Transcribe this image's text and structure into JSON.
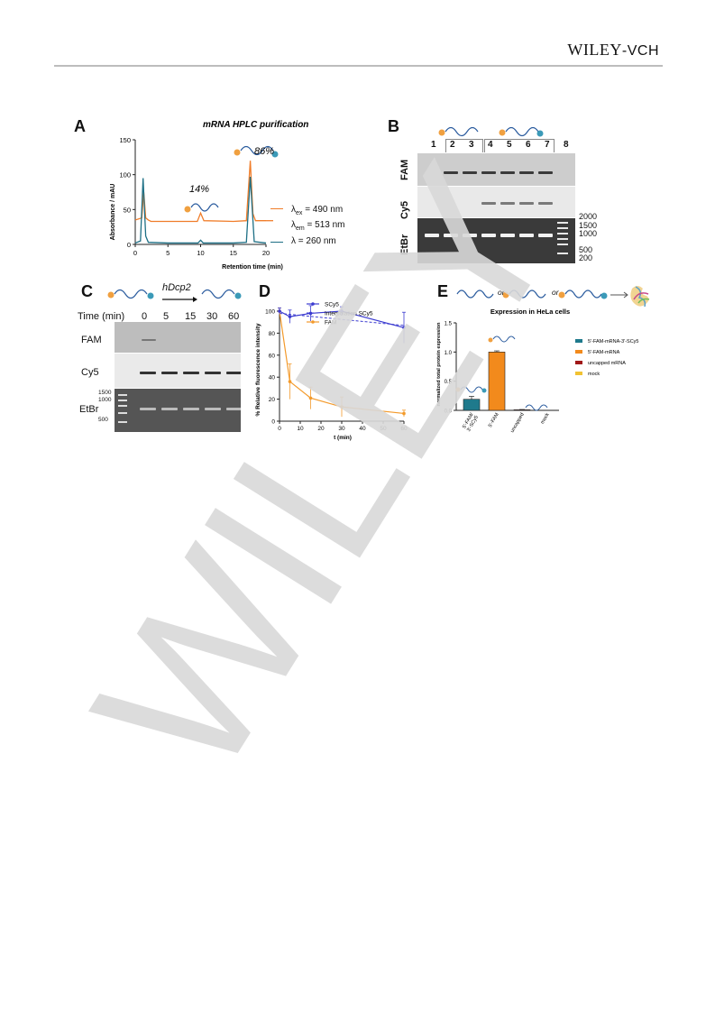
{
  "header": {
    "brand_main": "WILEY",
    "brand_sub": "-VCH"
  },
  "watermark": "WILEY",
  "panels": {
    "a": {
      "letter": "A",
      "title": "mRNA HPLC purification",
      "ylabel": "Absorbance / mAU",
      "xlabel": "Retention time (min)",
      "yticks": [
        "150",
        "100",
        "50",
        "0"
      ],
      "xticks": [
        "0",
        "5",
        "10",
        "15",
        "20"
      ],
      "peak_small_pct": "14%",
      "peak_large_pct": "86%",
      "legend_ex_value": "= 490 nm",
      "legend_em_value": "= 513 nm",
      "legend_abs_value": "= 260 nm",
      "lambda": "λ",
      "sub_ex": "ex",
      "sub_em": "em",
      "orange_color": "#f07d2a",
      "teal_color": "#1d6f85"
    },
    "b": {
      "letter": "B",
      "lanes": [
        "1",
        "2",
        "3",
        "4",
        "5",
        "6",
        "7",
        "8"
      ],
      "row_labels": [
        "FAM",
        "Cy5",
        "EtBr"
      ],
      "marker_labels": [
        "2000",
        "1500",
        "1000",
        "500",
        "200"
      ]
    },
    "c": {
      "letter": "C",
      "enzyme": "hDcp2",
      "time_label": "Time (min)",
      "times": [
        "0",
        "5",
        "15",
        "30",
        "60"
      ],
      "row_labels": [
        "FAM",
        "Cy5",
        "EtBr"
      ],
      "marker_labels": [
        "1500",
        "1000",
        "500"
      ]
    },
    "d": {
      "letter": "D",
      "ylabel": "% Relative fluorescence intensity",
      "xlabel": "t (min)",
      "yticks": [
        "100",
        "80",
        "60",
        "40",
        "20",
        "0"
      ],
      "xticks": [
        "0",
        "10",
        "20",
        "30",
        "40",
        "50",
        "60"
      ],
      "legend": [
        "SCy5",
        "Interpolation SCy5",
        "FAM"
      ],
      "scy5_color": "#3b3bd0",
      "fam_color": "#f39a2b"
    },
    "e": {
      "letter": "E",
      "or_word": "or",
      "title": "Expression in HeLa cells",
      "ylabel": "normalized total protein expression",
      "yticks": [
        "1.5",
        "1.0",
        "0.5",
        "0.0"
      ],
      "bar_labels": [
        "5'-FAM/ 3'-SCy5",
        "5'-FAM",
        "uncapped",
        "mock"
      ],
      "legend": [
        "5'-FAM-mRNA-3'-SCy5",
        "5'-FAM-mRNA",
        "uncapped mRNA",
        "mock"
      ],
      "legend_colors": [
        "#1f7a8c",
        "#f28a1c",
        "#a01818",
        "#f1c232"
      ]
    }
  },
  "chart_data": [
    {
      "type": "line",
      "title": "mRNA HPLC purification",
      "xlabel": "Retention time (min)",
      "ylabel": "Absorbance / mAU",
      "xlim": [
        0,
        20
      ],
      "ylim": [
        0,
        150
      ],
      "annotations": [
        "14%",
        "86%"
      ],
      "series": [
        {
          "name": "λex = 490 nm, λem = 513 nm",
          "x": [
            0,
            1,
            1.3,
            1.6,
            2,
            2.4,
            5,
            9.5,
            10,
            10.5,
            15,
            17,
            17.6,
            18,
            18.4,
            20
          ],
          "y": [
            35,
            38,
            75,
            38,
            35,
            33,
            33,
            33,
            45,
            34,
            33,
            34,
            120,
            44,
            34,
            34
          ]
        },
        {
          "name": "λ = 260 nm",
          "x": [
            0,
            0.8,
            1.2,
            1.6,
            2,
            5,
            9.6,
            10,
            10.4,
            15,
            17,
            17.6,
            18.2,
            20
          ],
          "y": [
            2,
            5,
            95,
            12,
            3,
            2,
            2,
            6,
            2,
            2,
            3,
            97,
            4,
            2
          ]
        }
      ]
    },
    {
      "type": "line",
      "xlabel": "t (min)",
      "ylabel": "% Relative fluorescence intensity",
      "xlim": [
        0,
        60
      ],
      "ylim": [
        0,
        100
      ],
      "legend_position": "top-right",
      "series": [
        {
          "name": "SCy5",
          "x": [
            0,
            5,
            15,
            30,
            60
          ],
          "y": [
            100,
            95,
            98,
            100,
            85
          ],
          "err": [
            3,
            6,
            7,
            4,
            14
          ]
        },
        {
          "name": "Interpolation SCy5",
          "x": [
            0,
            60
          ],
          "y": [
            98,
            87
          ]
        },
        {
          "name": "FAM",
          "x": [
            0,
            5,
            15,
            30,
            60
          ],
          "y": [
            100,
            36,
            21,
            13,
            7
          ],
          "err": [
            3,
            16,
            10,
            9,
            3
          ]
        }
      ]
    },
    {
      "type": "bar",
      "title": "Expression in HeLa cells",
      "ylabel": "normalized total protein expression",
      "categories": [
        "5'-FAM/ 3'-SCy5",
        "5'-FAM",
        "uncapped",
        "mock"
      ],
      "values": [
        0.19,
        1.0,
        0.01,
        0.0
      ],
      "errors": [
        0.05,
        0.02,
        0.005,
        0
      ],
      "ylim": [
        0,
        1.5
      ],
      "legend_position": "right"
    }
  ]
}
